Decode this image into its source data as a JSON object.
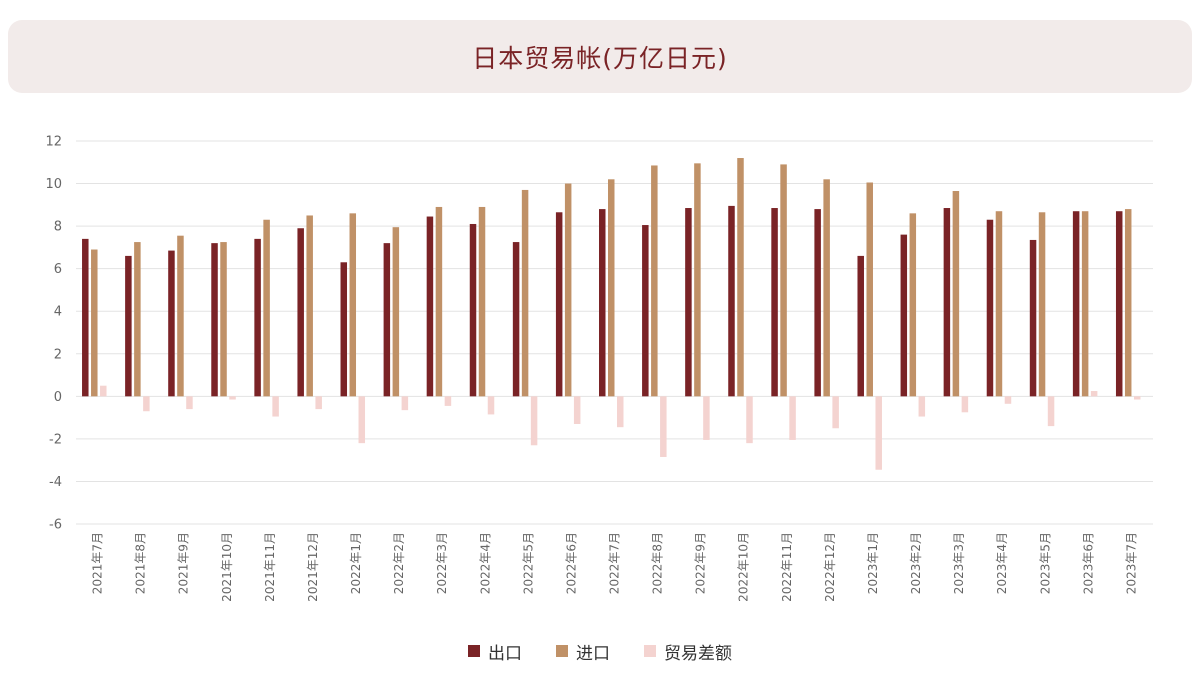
{
  "chart_data": {
    "type": "bar",
    "title": "日本贸易帐(万亿日元)",
    "categories": [
      "2021年7月",
      "2021年8月",
      "2021年9月",
      "2021年10月",
      "2021年11月",
      "2021年12月",
      "2022年1月",
      "2022年2月",
      "2022年3月",
      "2022年4月",
      "2022年5月",
      "2022年6月",
      "2022年7月",
      "2022年8月",
      "2022年9月",
      "2022年10月",
      "2022年11月",
      "2022年12月",
      "2023年1月",
      "2023年2月",
      "2023年3月",
      "2023年4月",
      "2023年5月",
      "2023年6月",
      "2023年7月"
    ],
    "series": [
      {
        "name": "出口",
        "color": "#7a2326",
        "values": [
          7.4,
          6.6,
          6.85,
          7.2,
          7.4,
          7.9,
          6.3,
          7.2,
          8.45,
          8.1,
          7.25,
          8.65,
          8.8,
          8.05,
          8.85,
          8.95,
          8.85,
          8.8,
          6.6,
          7.6,
          8.85,
          8.3,
          7.35,
          8.7,
          8.7
        ]
      },
      {
        "name": "进口",
        "color": "#c09167",
        "values": [
          6.9,
          7.25,
          7.55,
          7.25,
          8.3,
          8.5,
          8.6,
          7.95,
          8.9,
          8.9,
          9.7,
          10.0,
          10.2,
          10.85,
          10.95,
          11.2,
          10.9,
          10.2,
          10.05,
          8.6,
          9.65,
          8.7,
          8.65,
          8.7,
          8.8
        ]
      },
      {
        "name": "贸易差额",
        "color": "#f4d3d0",
        "values": [
          0.5,
          -0.7,
          -0.6,
          -0.15,
          -0.95,
          -0.6,
          -2.2,
          -0.65,
          -0.45,
          -0.85,
          -2.3,
          -1.3,
          -1.45,
          -2.85,
          -2.05,
          -2.2,
          -2.05,
          -1.5,
          -3.45,
          -0.95,
          -0.75,
          -0.35,
          -1.4,
          0.25,
          -0.15
        ]
      }
    ],
    "ylim": [
      -6,
      12
    ],
    "yticks": [
      12,
      10,
      8,
      6,
      4,
      2,
      0,
      -2,
      -4,
      -6
    ],
    "grid": true,
    "legend_position": "bottom"
  }
}
